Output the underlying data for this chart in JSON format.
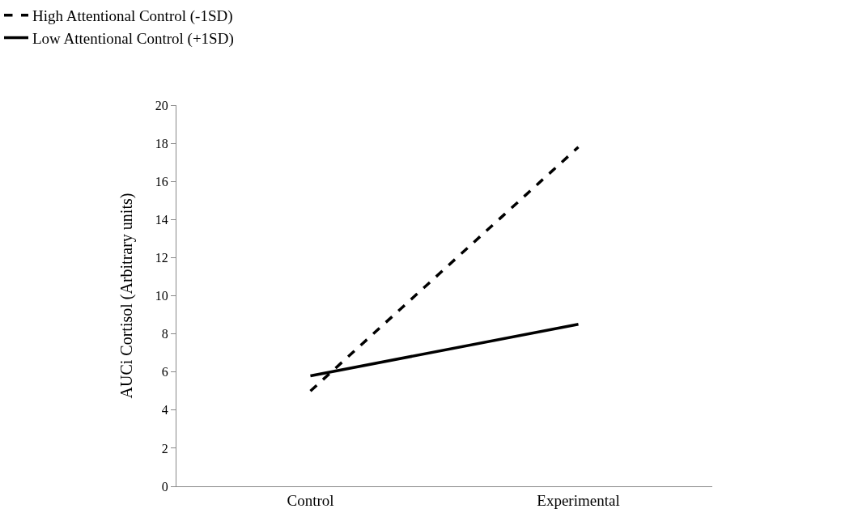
{
  "chart_data": {
    "type": "line",
    "ylabel": "AUCi Cortisol (Arbitrary units)",
    "categories": [
      "Control",
      "Experimental"
    ],
    "series": [
      {
        "name": "High Attentional Control (-1SD)",
        "color": "#000000",
        "line_style": "dashed",
        "values": [
          5.0,
          17.8
        ]
      },
      {
        "name": "Low Attentional Control (+1SD)",
        "color": "#000000",
        "line_style": "solid",
        "values": [
          5.8,
          8.5
        ]
      }
    ],
    "ylim": [
      0,
      20
    ],
    "yticks": [
      0,
      2,
      4,
      6,
      8,
      10,
      12,
      14,
      16,
      18,
      20
    ],
    "legend": "top",
    "marker": "none"
  }
}
